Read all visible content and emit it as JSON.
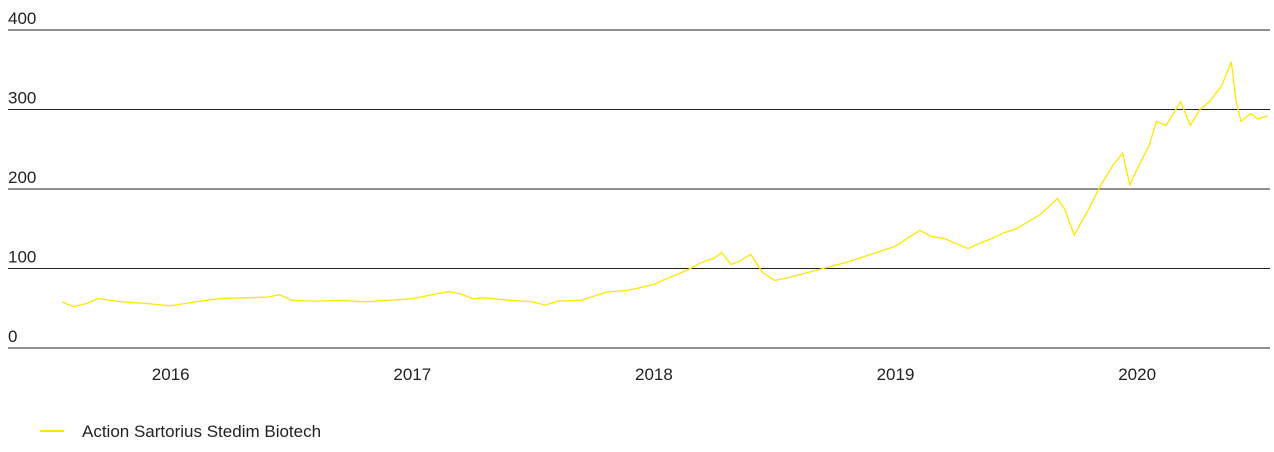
{
  "chart_data": {
    "type": "line",
    "x": [
      2015.55,
      2015.6,
      2015.65,
      2015.7,
      2015.8,
      2015.9,
      2016.0,
      2016.1,
      2016.2,
      2016.3,
      2016.4,
      2016.45,
      2016.5,
      2016.6,
      2016.7,
      2016.8,
      2016.9,
      2017.0,
      2017.1,
      2017.15,
      2017.2,
      2017.25,
      2017.3,
      2017.4,
      2017.5,
      2017.55,
      2017.6,
      2017.7,
      2017.75,
      2017.8,
      2017.9,
      2018.0,
      2018.05,
      2018.1,
      2018.15,
      2018.2,
      2018.25,
      2018.28,
      2018.32,
      2018.36,
      2018.4,
      2018.45,
      2018.5,
      2018.55,
      2018.6,
      2018.7,
      2018.8,
      2018.9,
      2019.0,
      2019.05,
      2019.1,
      2019.15,
      2019.2,
      2019.3,
      2019.35,
      2019.4,
      2019.45,
      2019.5,
      2019.6,
      2019.67,
      2019.7,
      2019.74,
      2019.8,
      2019.85,
      2019.9,
      2019.94,
      2019.97,
      2020.0,
      2020.05,
      2020.08,
      2020.12,
      2020.18,
      2020.22,
      2020.26,
      2020.3,
      2020.35,
      2020.39,
      2020.41,
      2020.43,
      2020.47,
      2020.5,
      2020.54
    ],
    "series": [
      {
        "name": "Action Sartorius Stedim Biotech",
        "color": "#ffe600",
        "values": [
          58,
          52,
          56,
          62,
          58,
          56,
          53,
          58,
          62,
          63,
          64,
          67,
          60,
          59,
          60,
          58,
          60,
          62,
          68,
          71,
          68,
          62,
          63,
          60,
          58,
          54,
          59,
          60,
          65,
          70,
          73,
          80,
          87,
          93,
          100,
          108,
          113,
          120,
          105,
          110,
          118,
          95,
          85,
          88,
          92,
          100,
          108,
          118,
          128,
          138,
          148,
          140,
          138,
          125,
          132,
          138,
          145,
          150,
          168,
          188,
          175,
          142,
          175,
          205,
          230,
          245,
          205,
          225,
          255,
          285,
          280,
          310,
          280,
          300,
          310,
          330,
          360,
          310,
          285,
          295,
          288,
          292
        ]
      }
    ],
    "xlim": [
      2015.55,
      2020.55
    ],
    "xticks": [
      2016,
      2017,
      2018,
      2019,
      2020
    ],
    "ylim": [
      0,
      400
    ],
    "yticks": [
      0,
      100,
      200,
      300,
      400
    ],
    "grid": true,
    "legend": "bottom-left"
  }
}
